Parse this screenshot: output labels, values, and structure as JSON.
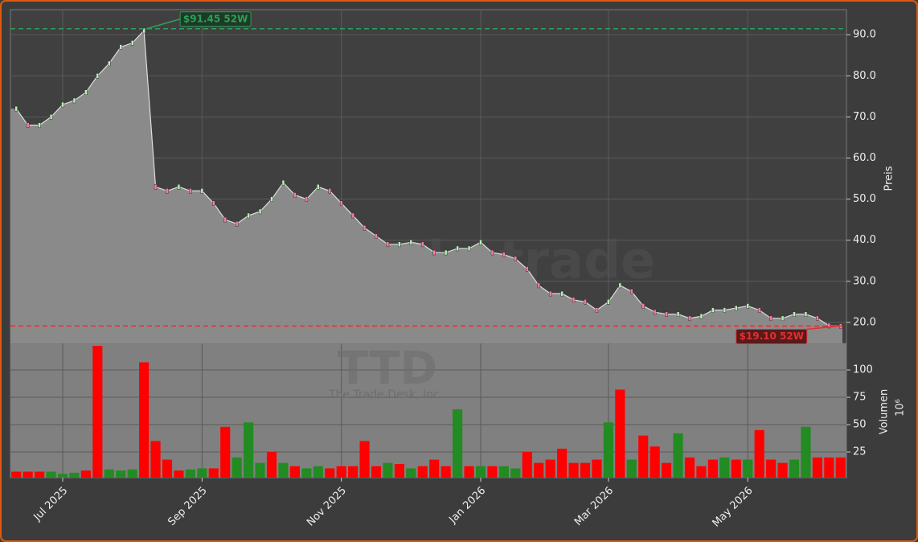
{
  "chart_data": [
    {
      "type": "area",
      "y_label": "Preis",
      "watermark": "forexsignale.trade",
      "color": "#8a8a8a",
      "grid": true,
      "values": [
        72,
        68,
        68,
        70,
        73,
        74,
        76,
        80,
        83,
        87,
        88,
        91,
        53,
        52,
        53,
        52,
        52,
        49,
        45,
        44,
        46,
        47,
        50,
        54,
        51,
        50,
        53,
        52,
        49,
        46,
        43,
        41,
        39,
        39,
        39.5,
        39,
        37,
        37,
        38,
        38,
        39.5,
        37,
        36.5,
        35.5,
        33,
        29,
        27,
        27,
        25.5,
        25,
        23,
        25,
        29,
        27.5,
        24,
        22.5,
        22,
        22,
        21,
        21.5,
        23,
        23,
        23.5,
        24,
        23,
        21,
        21,
        22,
        22,
        21,
        19.2,
        19.1
      ],
      "ylim": [
        14.9,
        96.1
      ],
      "yticks": [
        {
          "value": 20,
          "label": "20.0"
        },
        {
          "value": 30,
          "label": "30.0"
        },
        {
          "value": 40,
          "label": "40.0"
        },
        {
          "value": 50,
          "label": "50.0"
        },
        {
          "value": 60,
          "label": "60.0"
        },
        {
          "value": 70,
          "label": "70.0"
        },
        {
          "value": 80,
          "label": "80.0"
        },
        {
          "value": 90,
          "label": "90.0"
        }
      ],
      "annotations": [
        {
          "text": "$91.45 52W",
          "value": 91.45,
          "color": "#2ca05a"
        },
        {
          "text": "$19.10 52W",
          "value": 19.1,
          "color": "#e03030"
        }
      ]
    },
    {
      "type": "bar",
      "y_label": "Volumen",
      "y_unit": "10⁶",
      "watermark": "TTD",
      "watermark_subtitle": "The Trade Desk, Inc.",
      "grid": true,
      "categories": [
        null,
        null,
        null,
        null,
        "Jul 2025",
        null,
        null,
        null,
        null,
        null,
        null,
        null,
        null,
        null,
        null,
        null,
        "Sep 2025",
        null,
        null,
        null,
        null,
        null,
        null,
        null,
        null,
        null,
        null,
        null,
        "Nov 2025",
        null,
        null,
        null,
        null,
        null,
        null,
        null,
        null,
        null,
        null,
        null,
        "Jan 2026",
        null,
        null,
        null,
        null,
        null,
        null,
        null,
        null,
        null,
        null,
        "Mar 2026",
        null,
        null,
        null,
        null,
        null,
        null,
        null,
        null,
        null,
        null,
        null,
        "May 2026",
        null,
        null,
        null,
        null,
        null,
        null,
        null,
        null
      ],
      "values": [
        7,
        7,
        7,
        7,
        5,
        6,
        8,
        122,
        9,
        8,
        9,
        107,
        35,
        18,
        8,
        9,
        10,
        10,
        48,
        20,
        52,
        15,
        25,
        15,
        12,
        10,
        12,
        10,
        12,
        12,
        35,
        12,
        15,
        14,
        10,
        12,
        18,
        12,
        64,
        12,
        12,
        12,
        12,
        10,
        25,
        15,
        18,
        28,
        15,
        15,
        18,
        52,
        82,
        18,
        40,
        30,
        15,
        42,
        20,
        12,
        18,
        20,
        18,
        18,
        45,
        18,
        15,
        18,
        48,
        20,
        20,
        20
      ],
      "colors": [
        "#ff0000",
        "#ff0000",
        "#ff0000",
        "#228b22",
        "#228b22",
        "#228b22",
        "#ff0000",
        "#ff0000",
        "#228b22",
        "#228b22",
        "#228b22",
        "#ff0000",
        "#ff0000",
        "#ff0000",
        "#ff0000",
        "#228b22",
        "#228b22",
        "#ff0000",
        "#ff0000",
        "#228b22",
        "#228b22",
        "#228b22",
        "#ff0000",
        "#228b22",
        "#ff0000",
        "#228b22",
        "#228b22",
        "#ff0000",
        "#ff0000",
        "#ff0000",
        "#ff0000",
        "#ff0000",
        "#228b22",
        "#ff0000",
        "#228b22",
        "#ff0000",
        "#ff0000",
        "#ff0000",
        "#228b22",
        "#ff0000",
        "#228b22",
        "#ff0000",
        "#228b22",
        "#228b22",
        "#ff0000",
        "#ff0000",
        "#ff0000",
        "#ff0000",
        "#ff0000",
        "#ff0000",
        "#ff0000",
        "#228b22",
        "#ff0000",
        "#228b22",
        "#ff0000",
        "#ff0000",
        "#ff0000",
        "#228b22",
        "#ff0000",
        "#ff0000",
        "#ff0000",
        "#228b22",
        "#ff0000",
        "#228b22",
        "#ff0000",
        "#ff0000",
        "#ff0000",
        "#228b22",
        "#228b22",
        "#ff0000",
        "#ff0000",
        "#ff0000"
      ],
      "ylim": [
        1.5,
        124.3
      ],
      "yticks": [
        25,
        50,
        75,
        100
      ]
    }
  ]
}
